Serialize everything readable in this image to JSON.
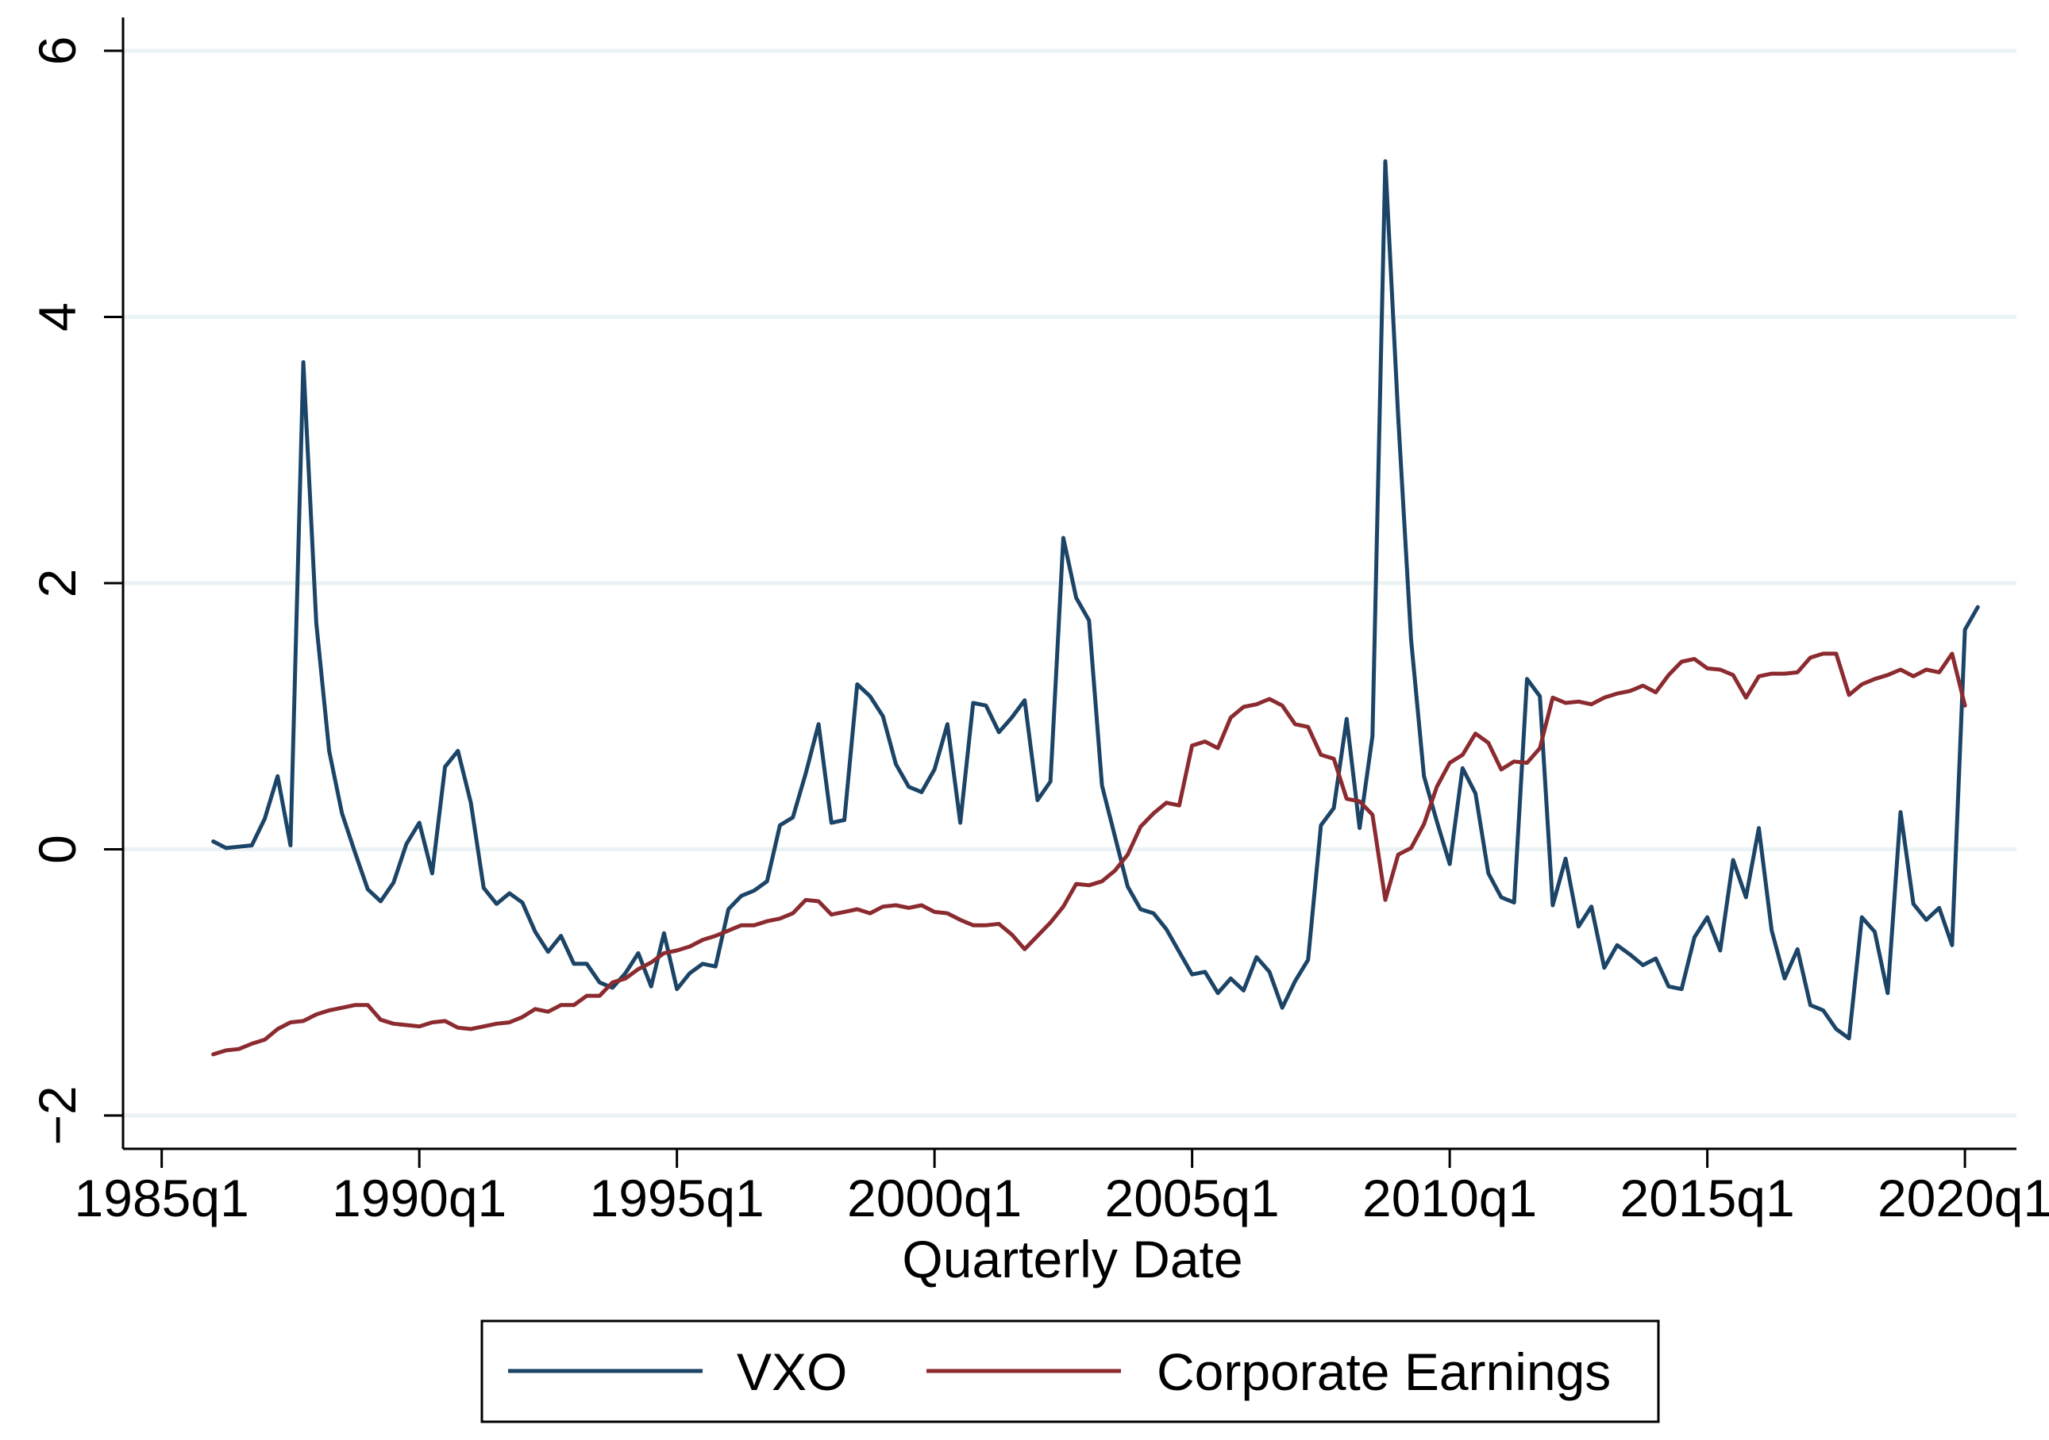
{
  "chart_data": {
    "type": "line",
    "title": "",
    "xlabel": "Quarterly Date",
    "ylabel": "",
    "x_start_year": 1986.0,
    "x_step": 0.25,
    "xlim": [
      1984.25,
      2021.0
    ],
    "ylim": [
      -2.25,
      6.25
    ],
    "x_ticks": [
      {
        "value": 1985.0,
        "label": "1985q1"
      },
      {
        "value": 1990.0,
        "label": "1990q1"
      },
      {
        "value": 1995.0,
        "label": "1995q1"
      },
      {
        "value": 2000.0,
        "label": "2000q1"
      },
      {
        "value": 2005.0,
        "label": "2005q1"
      },
      {
        "value": 2010.0,
        "label": "2010q1"
      },
      {
        "value": 2015.0,
        "label": "2015q1"
      },
      {
        "value": 2020.0,
        "label": "2020q1"
      }
    ],
    "y_ticks": [
      {
        "value": -2,
        "label": "−2"
      },
      {
        "value": 0,
        "label": "0"
      },
      {
        "value": 2,
        "label": "2"
      },
      {
        "value": 4,
        "label": "4"
      },
      {
        "value": 6,
        "label": "6"
      }
    ],
    "grid": true,
    "legend": {
      "position": "bottom",
      "entries": [
        "VXO",
        "Corporate Earnings"
      ]
    },
    "series": [
      {
        "name": "VXO",
        "color": "#1b4466",
        "values": [
          0.06,
          0.01,
          0.02,
          0.03,
          0.23,
          0.55,
          0.03,
          3.66,
          1.7,
          0.74,
          0.27,
          -0.02,
          -0.3,
          -0.39,
          -0.25,
          0.04,
          0.2,
          -0.18,
          0.62,
          0.74,
          0.35,
          -0.29,
          -0.41,
          -0.33,
          -0.4,
          -0.62,
          -0.77,
          -0.65,
          -0.86,
          -0.86,
          -1.0,
          -1.04,
          -0.93,
          -0.78,
          -1.03,
          -0.63,
          -1.05,
          -0.93,
          -0.86,
          -0.88,
          -0.45,
          -0.35,
          -0.31,
          -0.24,
          0.18,
          0.24,
          0.57,
          0.94,
          0.2,
          0.22,
          1.24,
          1.15,
          1.0,
          0.64,
          0.47,
          0.43,
          0.6,
          0.94,
          0.2,
          1.1,
          1.08,
          0.88,
          0.99,
          1.12,
          0.37,
          0.51,
          2.34,
          1.89,
          1.72,
          0.48,
          0.1,
          -0.28,
          -0.45,
          -0.48,
          -0.6,
          -0.77,
          -0.94,
          -0.92,
          -1.08,
          -0.97,
          -1.06,
          -0.81,
          -0.92,
          -1.19,
          -0.99,
          -0.83,
          0.18,
          0.31,
          0.98,
          0.16,
          0.85,
          5.17,
          3.25,
          1.58,
          0.55,
          0.21,
          -0.11,
          0.61,
          0.42,
          -0.18,
          -0.36,
          -0.4,
          1.28,
          1.15,
          -0.42,
          -0.07,
          -0.58,
          -0.43,
          -0.89,
          -0.72,
          -0.79,
          -0.87,
          -0.82,
          -1.03,
          -1.05,
          -0.66,
          -0.51,
          -0.76,
          -0.08,
          -0.36,
          0.16,
          -0.61,
          -0.97,
          -0.75,
          -1.17,
          -1.21,
          -1.35,
          -1.42,
          -0.51,
          -0.62,
          -1.08,
          0.28,
          -0.41,
          -0.53,
          -0.44,
          -0.72,
          1.65,
          1.82
        ]
      },
      {
        "name": "Corporate Earnings",
        "color": "#8b2b30",
        "values": [
          -1.54,
          -1.51,
          -1.5,
          -1.46,
          -1.43,
          -1.35,
          -1.3,
          -1.29,
          -1.24,
          -1.21,
          -1.19,
          -1.17,
          -1.17,
          -1.28,
          -1.31,
          -1.32,
          -1.33,
          -1.3,
          -1.29,
          -1.34,
          -1.35,
          -1.33,
          -1.31,
          -1.3,
          -1.26,
          -1.2,
          -1.22,
          -1.17,
          -1.17,
          -1.1,
          -1.1,
          -1.0,
          -0.97,
          -0.9,
          -0.85,
          -0.78,
          -0.76,
          -0.73,
          -0.68,
          -0.65,
          -0.61,
          -0.57,
          -0.57,
          -0.54,
          -0.52,
          -0.48,
          -0.38,
          -0.39,
          -0.49,
          -0.47,
          -0.45,
          -0.48,
          -0.43,
          -0.42,
          -0.44,
          -0.42,
          -0.47,
          -0.48,
          -0.53,
          -0.57,
          -0.57,
          -0.56,
          -0.64,
          -0.75,
          -0.65,
          -0.55,
          -0.43,
          -0.26,
          -0.27,
          -0.24,
          -0.16,
          -0.04,
          0.17,
          0.27,
          0.35,
          0.33,
          0.78,
          0.81,
          0.76,
          0.99,
          1.07,
          1.09,
          1.13,
          1.08,
          0.94,
          0.92,
          0.71,
          0.68,
          0.38,
          0.36,
          0.26,
          -0.38,
          -0.04,
          0.01,
          0.19,
          0.47,
          0.65,
          0.71,
          0.87,
          0.8,
          0.6,
          0.66,
          0.65,
          0.76,
          1.14,
          1.1,
          1.11,
          1.09,
          1.14,
          1.17,
          1.19,
          1.23,
          1.18,
          1.31,
          1.41,
          1.43,
          1.36,
          1.35,
          1.31,
          1.14,
          1.3,
          1.32,
          1.32,
          1.33,
          1.44,
          1.47,
          1.47,
          1.16,
          1.24,
          1.28,
          1.31,
          1.35,
          1.3,
          1.35,
          1.33,
          1.47,
          1.08
        ]
      }
    ]
  }
}
